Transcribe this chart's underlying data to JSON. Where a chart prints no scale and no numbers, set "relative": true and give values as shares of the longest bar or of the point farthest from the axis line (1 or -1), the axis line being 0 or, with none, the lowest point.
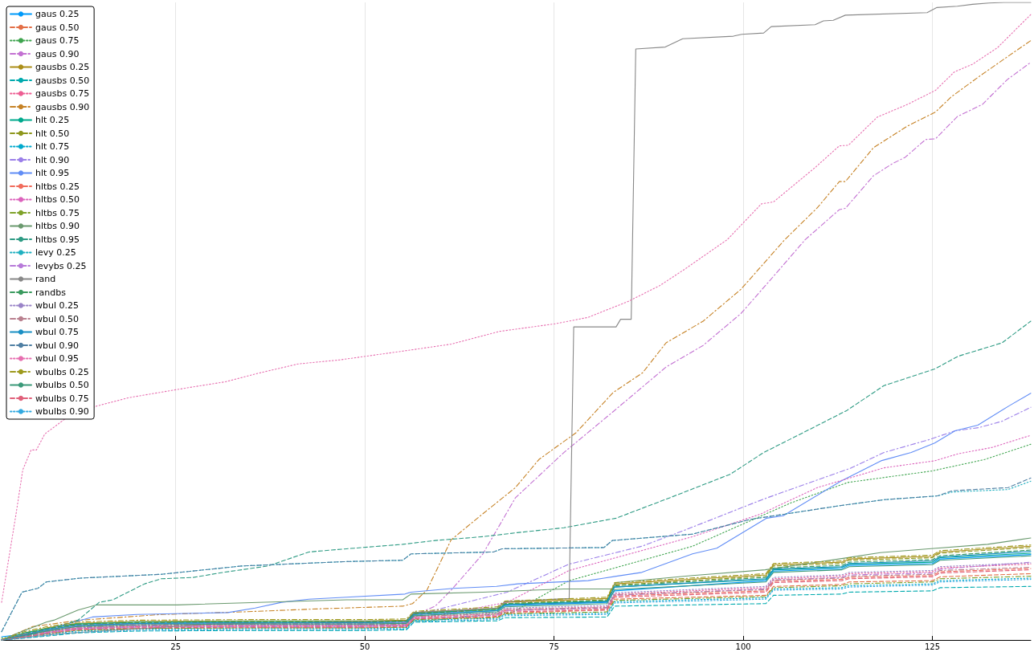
{
  "chart_data": {
    "type": "line",
    "relative": true,
    "xlim": [
      2,
      138
    ],
    "xticks": [
      25,
      50,
      75,
      100,
      125
    ],
    "grid": "x",
    "legend": "top left",
    "marker": "none",
    "tick_labels": "x",
    "series": [
      {
        "name": "gaus 0.25",
        "color": "#009afa",
        "line_style": "solid",
        "x": [
          2,
          5,
          8,
          12,
          20,
          35,
          50,
          55.5,
          56.5,
          67.5,
          68.5,
          82,
          83,
          103,
          104,
          113,
          114,
          125,
          126,
          138
        ],
        "values": [
          0.005,
          0.009,
          0.016,
          0.023,
          0.026,
          0.027,
          0.027,
          0.028,
          0.04,
          0.046,
          0.054,
          0.059,
          0.077,
          0.093,
          0.108,
          0.112,
          0.117,
          0.12,
          0.127,
          0.134
        ]
      },
      {
        "name": "gaus 0.50",
        "color": "#e36f47",
        "line_style": "dashed",
        "x": [
          2,
          5,
          8,
          12,
          20,
          35,
          50,
          55.5,
          56.5,
          67.5,
          68.5,
          82,
          83,
          103,
          104,
          113,
          114,
          125,
          126,
          138
        ],
        "values": [
          0.001,
          0.005,
          0.01,
          0.016,
          0.018,
          0.019,
          0.019,
          0.02,
          0.033,
          0.036,
          0.042,
          0.047,
          0.064,
          0.07,
          0.084,
          0.087,
          0.091,
          0.093,
          0.099,
          0.104
        ]
      },
      {
        "name": "gaus 0.75",
        "color": "#3ea44e",
        "line_style": "dotted",
        "x": [
          2,
          5,
          8,
          12,
          20,
          35,
          50,
          55.5,
          56.5,
          59.3,
          69.6,
          77,
          93.3,
          106.3,
          113.8,
          124.9,
          131.9,
          138
        ],
        "values": [
          0.003,
          0.007,
          0.012,
          0.018,
          0.021,
          0.022,
          0.022,
          0.023,
          0.03,
          0.031,
          0.044,
          0.093,
          0.147,
          0.215,
          0.247,
          0.265,
          0.283,
          0.307
        ]
      },
      {
        "name": "gaus 0.90",
        "color": "#c371d2",
        "line_style": "dashdot",
        "x": [
          2,
          5,
          8,
          12,
          20,
          35,
          50,
          55.5,
          56.5,
          59.3,
          61.4,
          65.6,
          69.9,
          76.3,
          82.8,
          89.8,
          94.7,
          99.7,
          103.9,
          108.2,
          112.7,
          113.5,
          117.2,
          119.7,
          121.4,
          124.1,
          125.4,
          128.3,
          131.6,
          134.9,
          138
        ],
        "values": [
          0,
          0.008,
          0.015,
          0.022,
          0.025,
          0.026,
          0.026,
          0.027,
          0.039,
          0.053,
          0.078,
          0.135,
          0.223,
          0.294,
          0.358,
          0.428,
          0.462,
          0.512,
          0.569,
          0.628,
          0.675,
          0.677,
          0.728,
          0.747,
          0.757,
          0.785,
          0.786,
          0.821,
          0.84,
          0.879,
          0.906
        ]
      },
      {
        "name": "gausbs 0.25",
        "color": "#ac8e18",
        "line_style": "solid",
        "x": [
          2,
          5,
          8,
          12,
          20,
          35,
          50,
          55.5,
          56.5,
          67.5,
          68.5,
          82,
          83,
          103,
          104,
          113,
          114,
          125,
          126,
          138
        ],
        "values": [
          0,
          0.011,
          0.019,
          0.026,
          0.029,
          0.03,
          0.03,
          0.031,
          0.043,
          0.05,
          0.059,
          0.065,
          0.088,
          0.102,
          0.118,
          0.122,
          0.127,
          0.131,
          0.138,
          0.147
        ]
      },
      {
        "name": "gausbs 0.50",
        "color": "#00aaae",
        "line_style": "dashed",
        "x": [
          2,
          5,
          8,
          12,
          20,
          35,
          50,
          55.5,
          56.5,
          67.5,
          68.5,
          82,
          83,
          103,
          104,
          113,
          114,
          125,
          126,
          138
        ],
        "values": [
          0,
          0.003,
          0.006,
          0.011,
          0.014,
          0.015,
          0.015,
          0.016,
          0.028,
          0.03,
          0.035,
          0.036,
          0.053,
          0.057,
          0.07,
          0.072,
          0.075,
          0.077,
          0.082,
          0.084
        ]
      },
      {
        "name": "gausbs 0.75",
        "color": "#ed5e93",
        "line_style": "dotted",
        "x": [
          2,
          5,
          8,
          12,
          20,
          35,
          50,
          55.5,
          56.5,
          67.5,
          68.5,
          82,
          83,
          103,
          104,
          113,
          114,
          125,
          126,
          138
        ],
        "values": [
          0,
          0.007,
          0.013,
          0.019,
          0.022,
          0.023,
          0.023,
          0.024,
          0.036,
          0.041,
          0.048,
          0.052,
          0.072,
          0.082,
          0.096,
          0.1,
          0.104,
          0.107,
          0.113,
          0.119
        ]
      },
      {
        "name": "gausbs 0.90",
        "color": "#c68225",
        "line_style": "dashdot",
        "x": [
          2,
          6.1,
          12.4,
          23.1,
          33.7,
          44.4,
          55,
          56.3,
          58.2,
          61.4,
          65.6,
          69.9,
          73,
          77.9,
          82.8,
          86.7,
          89.8,
          94.7,
          99.7,
          105.5,
          109.8,
          112.7,
          113.5,
          117.2,
          121.7,
          125.4,
          127.5,
          131.2,
          135.3,
          138
        ],
        "values": [
          0,
          0.021,
          0.031,
          0.04,
          0.044,
          0.049,
          0.053,
          0.057,
          0.078,
          0.157,
          0.198,
          0.239,
          0.283,
          0.325,
          0.388,
          0.419,
          0.466,
          0.5,
          0.55,
          0.628,
          0.678,
          0.719,
          0.719,
          0.772,
          0.806,
          0.828,
          0.852,
          0.884,
          0.918,
          0.94
        ]
      },
      {
        "name": "hlt 0.25",
        "color": "#00a98d",
        "line_style": "solid",
        "x": [
          2,
          5,
          8,
          12,
          20,
          35,
          50,
          55.5,
          56.5,
          67.5,
          68.5,
          82,
          83,
          103,
          104,
          113,
          114,
          125,
          126,
          138
        ],
        "values": [
          0,
          0.011,
          0.018,
          0.025,
          0.028,
          0.029,
          0.029,
          0.03,
          0.042,
          0.048,
          0.056,
          0.061,
          0.083,
          0.095,
          0.11,
          0.114,
          0.119,
          0.122,
          0.129,
          0.136
        ]
      },
      {
        "name": "hlt 0.50",
        "color": "#8e971d",
        "line_style": "dashed",
        "x": [
          2,
          5,
          8,
          12,
          20,
          35,
          50,
          55.5,
          56.5,
          67.5,
          68.5,
          82,
          83,
          103,
          104,
          113,
          114,
          125,
          126,
          138
        ],
        "values": [
          0,
          0.009,
          0.017,
          0.024,
          0.027,
          0.028,
          0.028,
          0.029,
          0.041,
          0.048,
          0.057,
          0.063,
          0.086,
          0.1,
          0.116,
          0.12,
          0.125,
          0.129,
          0.136,
          0.145
        ]
      },
      {
        "name": "hlt 0.75",
        "color": "#00a9cd",
        "line_style": "dotted",
        "x": [
          2,
          5,
          8,
          12,
          20,
          35,
          50,
          55.5,
          56.5,
          67.5,
          68.5,
          82,
          83,
          103,
          104,
          113,
          114,
          125,
          126,
          138
        ],
        "values": [
          0,
          0.005,
          0.009,
          0.014,
          0.017,
          0.018,
          0.018,
          0.019,
          0.031,
          0.034,
          0.04,
          0.042,
          0.06,
          0.066,
          0.08,
          0.082,
          0.085,
          0.088,
          0.093,
          0.097
        ]
      },
      {
        "name": "hlt 0.90",
        "color": "#9b7fe9",
        "line_style": "dashdot",
        "x": [
          2,
          5,
          8,
          12,
          20,
          35,
          50,
          55.5,
          56.5,
          59.3,
          68.8,
          77,
          86.6,
          92,
          102.7,
          114.3,
          118.6,
          124.5,
          128,
          131.1,
          134.2,
          138
        ],
        "values": [
          0,
          0.007,
          0.013,
          0.019,
          0.022,
          0.023,
          0.023,
          0.024,
          0.036,
          0.047,
          0.075,
          0.119,
          0.147,
          0.171,
          0.221,
          0.27,
          0.294,
          0.314,
          0.328,
          0.333,
          0.343,
          0.365
        ]
      },
      {
        "name": "hlt 0.95",
        "color": "#618df6",
        "line_style": "solid",
        "x": [
          2,
          6.1,
          14,
          19.9,
          31.9,
          35.5,
          39,
          42.6,
          47.6,
          55.3,
          56.1,
          61.7,
          67.4,
          70.2,
          79.5,
          81.6,
          86.6,
          93.3,
          96.5,
          103.1,
          105.3,
          112.9,
          118.2,
          122.2,
          125.3,
          128,
          131,
          135.1,
          138
        ],
        "values": [
          0,
          0.01,
          0.036,
          0.04,
          0.043,
          0.05,
          0.059,
          0.064,
          0.067,
          0.072,
          0.075,
          0.081,
          0.084,
          0.088,
          0.093,
          0.097,
          0.106,
          0.135,
          0.144,
          0.191,
          0.195,
          0.249,
          0.281,
          0.294,
          0.309,
          0.328,
          0.337,
          0.367,
          0.387
        ]
      },
      {
        "name": "hltbs 0.25",
        "color": "#f16c5c",
        "line_style": "dashed",
        "x": [
          2,
          5,
          8,
          12,
          20,
          35,
          50,
          55.5,
          56.5,
          67.5,
          68.5,
          82,
          83,
          103,
          104,
          113,
          114,
          125,
          126,
          138
        ],
        "values": [
          0,
          0.007,
          0.012,
          0.018,
          0.021,
          0.022,
          0.022,
          0.023,
          0.035,
          0.039,
          0.046,
          0.049,
          0.069,
          0.077,
          0.092,
          0.095,
          0.098,
          0.101,
          0.107,
          0.112
        ]
      },
      {
        "name": "hltbs 0.50",
        "color": "#dc63bc",
        "line_style": "dotted",
        "x": [
          2,
          5,
          8,
          12,
          20,
          35,
          50,
          55.5,
          56.5,
          59.3,
          68.8,
          77,
          93.3,
          102.2,
          109.8,
          118.6,
          125.3,
          128.4,
          132.9,
          138
        ],
        "values": [
          0,
          0.007,
          0.012,
          0.018,
          0.021,
          0.022,
          0.022,
          0.023,
          0.035,
          0.038,
          0.059,
          0.109,
          0.162,
          0.197,
          0.239,
          0.27,
          0.281,
          0.292,
          0.302,
          0.321
        ]
      },
      {
        "name": "hltbs 0.75",
        "color": "#7fa22a",
        "line_style": "dashdot",
        "x": [
          2,
          5,
          8,
          12,
          20,
          35,
          50,
          55.5,
          56.5,
          67.5,
          68.5,
          82,
          83,
          103,
          104,
          113,
          114,
          125,
          126,
          138
        ],
        "values": [
          0,
          0.005,
          0.01,
          0.015,
          0.018,
          0.019,
          0.019,
          0.02,
          0.032,
          0.035,
          0.041,
          0.044,
          0.062,
          0.068,
          0.082,
          0.085,
          0.088,
          0.091,
          0.096,
          0.1
        ]
      },
      {
        "name": "hltbs 0.90",
        "color": "#6b9a6f",
        "line_style": "solid",
        "x": [
          2,
          4,
          6.4,
          7.9,
          8.9,
          12.1,
          14.6,
          25.2,
          47.6,
          55,
          56.1,
          65.6,
          76.3,
          82.7,
          83.2,
          93.3,
          102.9,
          113.2,
          118.1,
          124.5,
          132.3,
          138
        ],
        "values": [
          0,
          0.01,
          0.021,
          0.028,
          0.031,
          0.047,
          0.055,
          0.055,
          0.063,
          0.063,
          0.072,
          0.075,
          0.08,
          0.08,
          0.09,
          0.101,
          0.11,
          0.128,
          0.137,
          0.143,
          0.15,
          0.16
        ]
      },
      {
        "name": "hltbs 0.95",
        "color": "#2e9b84",
        "line_style": "dashed",
        "x": [
          2,
          6,
          9,
          12.1,
          14.9,
          16.7,
          20.9,
          23.1,
          27.3,
          31.3,
          37.2,
          42.6,
          47.6,
          55,
          59.3,
          65.6,
          69.9,
          76.3,
          83.2,
          90.3,
          98.3,
          102.7,
          108.9,
          113.7,
          118.6,
          125.3,
          128.4,
          134.2,
          138
        ],
        "values": [
          0,
          0.008,
          0.02,
          0.031,
          0.059,
          0.063,
          0.088,
          0.096,
          0.098,
          0.106,
          0.116,
          0.138,
          0.143,
          0.15,
          0.156,
          0.162,
          0.168,
          0.176,
          0.191,
          0.223,
          0.26,
          0.294,
          0.331,
          0.36,
          0.399,
          0.425,
          0.445,
          0.466,
          0.5
        ]
      },
      {
        "name": "levy 0.25",
        "color": "#1fb0c0",
        "line_style": "dotted",
        "x": [
          2,
          4.7,
          6.8,
          7.9,
          12.4,
          23.1,
          33.7,
          47.6,
          55,
          56.1,
          67,
          68.1,
          81.6,
          82.7,
          93.3,
          100.9,
          112.4,
          118.6,
          125.7,
          127.6,
          135,
          138
        ],
        "values": [
          0.013,
          0.075,
          0.081,
          0.091,
          0.097,
          0.103,
          0.116,
          0.123,
          0.125,
          0.135,
          0.138,
          0.143,
          0.145,
          0.156,
          0.166,
          0.189,
          0.21,
          0.22,
          0.226,
          0.232,
          0.236,
          0.249
        ]
      },
      {
        "name": "levybs 0.25",
        "color": "#b77ad9",
        "line_style": "dashdot",
        "x": [
          2,
          5,
          8,
          12,
          20,
          35,
          50,
          55.5,
          56.5,
          67.5,
          68.5,
          82,
          83,
          103,
          104,
          113,
          114,
          125,
          126,
          138
        ],
        "values": [
          0,
          0.005,
          0.011,
          0.017,
          0.02,
          0.021,
          0.021,
          0.022,
          0.034,
          0.039,
          0.046,
          0.05,
          0.07,
          0.08,
          0.094,
          0.098,
          0.102,
          0.105,
          0.111,
          0.122
        ]
      },
      {
        "name": "rand",
        "color": "#888888",
        "line_style": "solid",
        "x": [
          2,
          10,
          30,
          55.5,
          56.5,
          67.5,
          68.5,
          77,
          77.6,
          83.2,
          83.8,
          85.2,
          85.8,
          89.7,
          92,
          98.7,
          99.8,
          102.7,
          103.7,
          109.5,
          110.6,
          111.9,
          113.5,
          124.3,
          125.6,
          128.3,
          130.3,
          132.5,
          134.5,
          138
        ],
        "values": [
          0,
          0.01,
          0.025,
          0.03,
          0.043,
          0.05,
          0.06,
          0.065,
          0.491,
          0.491,
          0.503,
          0.503,
          0.927,
          0.93,
          0.943,
          0.947,
          0.95,
          0.952,
          0.962,
          0.965,
          0.971,
          0.972,
          0.98,
          0.984,
          0.992,
          0.994,
          0.997,
          0.999,
          1,
          1
        ]
      },
      {
        "name": "randbs",
        "color": "#3a9a5e",
        "line_style": "dashed",
        "x": [
          2,
          5,
          8,
          12,
          20,
          35,
          50,
          55.5,
          56.5,
          67.5,
          68.5,
          82,
          83,
          103,
          104,
          113,
          114,
          125,
          126,
          138
        ],
        "values": [
          0,
          0.01,
          0.018,
          0.025,
          0.028,
          0.029,
          0.029,
          0.03,
          0.042,
          0.048,
          0.057,
          0.062,
          0.085,
          0.098,
          0.113,
          0.117,
          0.122,
          0.126,
          0.132,
          0.141
        ]
      },
      {
        "name": "wbul 0.25",
        "color": "#9a84c8",
        "line_style": "dotted",
        "x": [
          2,
          5,
          8,
          12,
          20,
          35,
          50,
          55.5,
          56.5,
          67.5,
          68.5,
          82,
          83,
          103,
          104,
          113,
          114,
          125,
          126,
          138
        ],
        "values": [
          0,
          0.009,
          0.015,
          0.021,
          0.024,
          0.025,
          0.025,
          0.026,
          0.038,
          0.043,
          0.05,
          0.054,
          0.074,
          0.084,
          0.098,
          0.102,
          0.106,
          0.109,
          0.115,
          0.121
        ]
      },
      {
        "name": "wbul 0.50",
        "color": "#b9808f",
        "line_style": "dashdot",
        "x": [
          2,
          5,
          8,
          12,
          20,
          35,
          50,
          55.5,
          56.5,
          67.5,
          68.5,
          82,
          83,
          103,
          104,
          113,
          114,
          125,
          126,
          138
        ],
        "values": [
          0,
          0.009,
          0.014,
          0.02,
          0.023,
          0.024,
          0.024,
          0.025,
          0.037,
          0.041,
          0.048,
          0.051,
          0.071,
          0.079,
          0.094,
          0.097,
          0.1,
          0.103,
          0.109,
          0.114
        ]
      },
      {
        "name": "wbul 0.75",
        "color": "#1a8fc4",
        "line_style": "solid",
        "x": [
          2,
          5,
          8,
          12,
          20,
          35,
          50,
          55.5,
          56.5,
          67.5,
          68.5,
          82,
          83,
          103,
          104,
          113,
          114,
          125,
          126,
          138
        ],
        "values": [
          0,
          0.008,
          0.016,
          0.023,
          0.026,
          0.027,
          0.027,
          0.028,
          0.04,
          0.046,
          0.055,
          0.06,
          0.083,
          0.096,
          0.111,
          0.115,
          0.12,
          0.124,
          0.13,
          0.139
        ]
      },
      {
        "name": "wbul 0.90",
        "color": "#4f7fa3",
        "line_style": "dashed",
        "x": [
          2,
          4.7,
          6.8,
          7.9,
          12.4,
          23.1,
          33.7,
          47.6,
          55,
          56.1,
          67,
          68.1,
          81.6,
          82.7,
          93.3,
          100.9,
          112.4,
          118.6,
          125.7,
          127.6,
          135,
          138
        ],
        "values": [
          0.013,
          0.075,
          0.081,
          0.091,
          0.097,
          0.103,
          0.116,
          0.123,
          0.125,
          0.135,
          0.138,
          0.143,
          0.145,
          0.156,
          0.166,
          0.189,
          0.21,
          0.22,
          0.226,
          0.234,
          0.239,
          0.254
        ]
      },
      {
        "name": "wbul 0.95",
        "color": "#e76fb0",
        "line_style": "dotted",
        "x": [
          2,
          3.9,
          4.8,
          5.9,
          6.6,
          7.7,
          10.3,
          14.6,
          18.8,
          26.3,
          31.6,
          35.8,
          41.2,
          46.5,
          55,
          61.4,
          67.8,
          75.2,
          79.5,
          84.8,
          89,
          92.2,
          97.9,
          102.4,
          104,
          109.5,
          112.7,
          113.9,
          117.7,
          121.7,
          125.4,
          127.9,
          130.3,
          133.6,
          138
        ],
        "values": [
          0.059,
          0.197,
          0.267,
          0.298,
          0.298,
          0.323,
          0.346,
          0.367,
          0.38,
          0.395,
          0.405,
          0.418,
          0.433,
          0.439,
          0.453,
          0.464,
          0.484,
          0.496,
          0.506,
          0.531,
          0.556,
          0.581,
          0.628,
          0.684,
          0.687,
          0.741,
          0.775,
          0.776,
          0.82,
          0.84,
          0.862,
          0.891,
          0.903,
          0.929,
          0.981
        ]
      },
      {
        "name": "wbulbs 0.25",
        "color": "#9e9a1e",
        "line_style": "dashdot",
        "x": [
          2,
          5,
          8,
          12,
          20,
          35,
          50,
          55.5,
          56.5,
          67.5,
          68.5,
          82,
          83,
          103,
          104,
          113,
          114,
          125,
          126,
          138
        ],
        "values": [
          0,
          0.013,
          0.021,
          0.028,
          0.031,
          0.032,
          0.032,
          0.033,
          0.045,
          0.052,
          0.061,
          0.067,
          0.09,
          0.104,
          0.12,
          0.124,
          0.129,
          0.133,
          0.14,
          0.149
        ]
      },
      {
        "name": "wbulbs 0.50",
        "color": "#3c9a7a",
        "line_style": "solid",
        "x": [
          2,
          5,
          8,
          12,
          20,
          35,
          50,
          55.5,
          56.5,
          67.5,
          68.5,
          82,
          83,
          103,
          104,
          113,
          114,
          125,
          126,
          138
        ],
        "values": [
          0,
          0.007,
          0.014,
          0.021,
          0.024,
          0.025,
          0.025,
          0.026,
          0.038,
          0.044,
          0.052,
          0.057,
          0.079,
          0.091,
          0.106,
          0.11,
          0.115,
          0.118,
          0.125,
          0.132
        ]
      },
      {
        "name": "wbulbs 0.75",
        "color": "#e0607a",
        "line_style": "dashed",
        "x": [
          2,
          5,
          8,
          12,
          20,
          35,
          50,
          55.5,
          56.5,
          67.5,
          68.5,
          82,
          83,
          103,
          104,
          113,
          114,
          125,
          126,
          138
        ],
        "values": [
          0,
          0.005,
          0.01,
          0.016,
          0.019,
          0.02,
          0.02,
          0.021,
          0.033,
          0.037,
          0.044,
          0.047,
          0.067,
          0.075,
          0.09,
          0.093,
          0.096,
          0.099,
          0.105,
          0.11
        ]
      },
      {
        "name": "wbulbs 0.90",
        "color": "#32a9e0",
        "line_style": "dotted",
        "x": [
          2,
          5,
          8,
          12,
          20,
          35,
          50,
          55.5,
          56.5,
          67.5,
          68.5,
          82,
          83,
          103,
          104,
          113,
          114,
          125,
          126,
          138
        ],
        "values": [
          0,
          0.003,
          0.007,
          0.012,
          0.015,
          0.016,
          0.016,
          0.017,
          0.029,
          0.032,
          0.038,
          0.04,
          0.058,
          0.064,
          0.078,
          0.08,
          0.083,
          0.086,
          0.091,
          0.095
        ]
      }
    ]
  }
}
